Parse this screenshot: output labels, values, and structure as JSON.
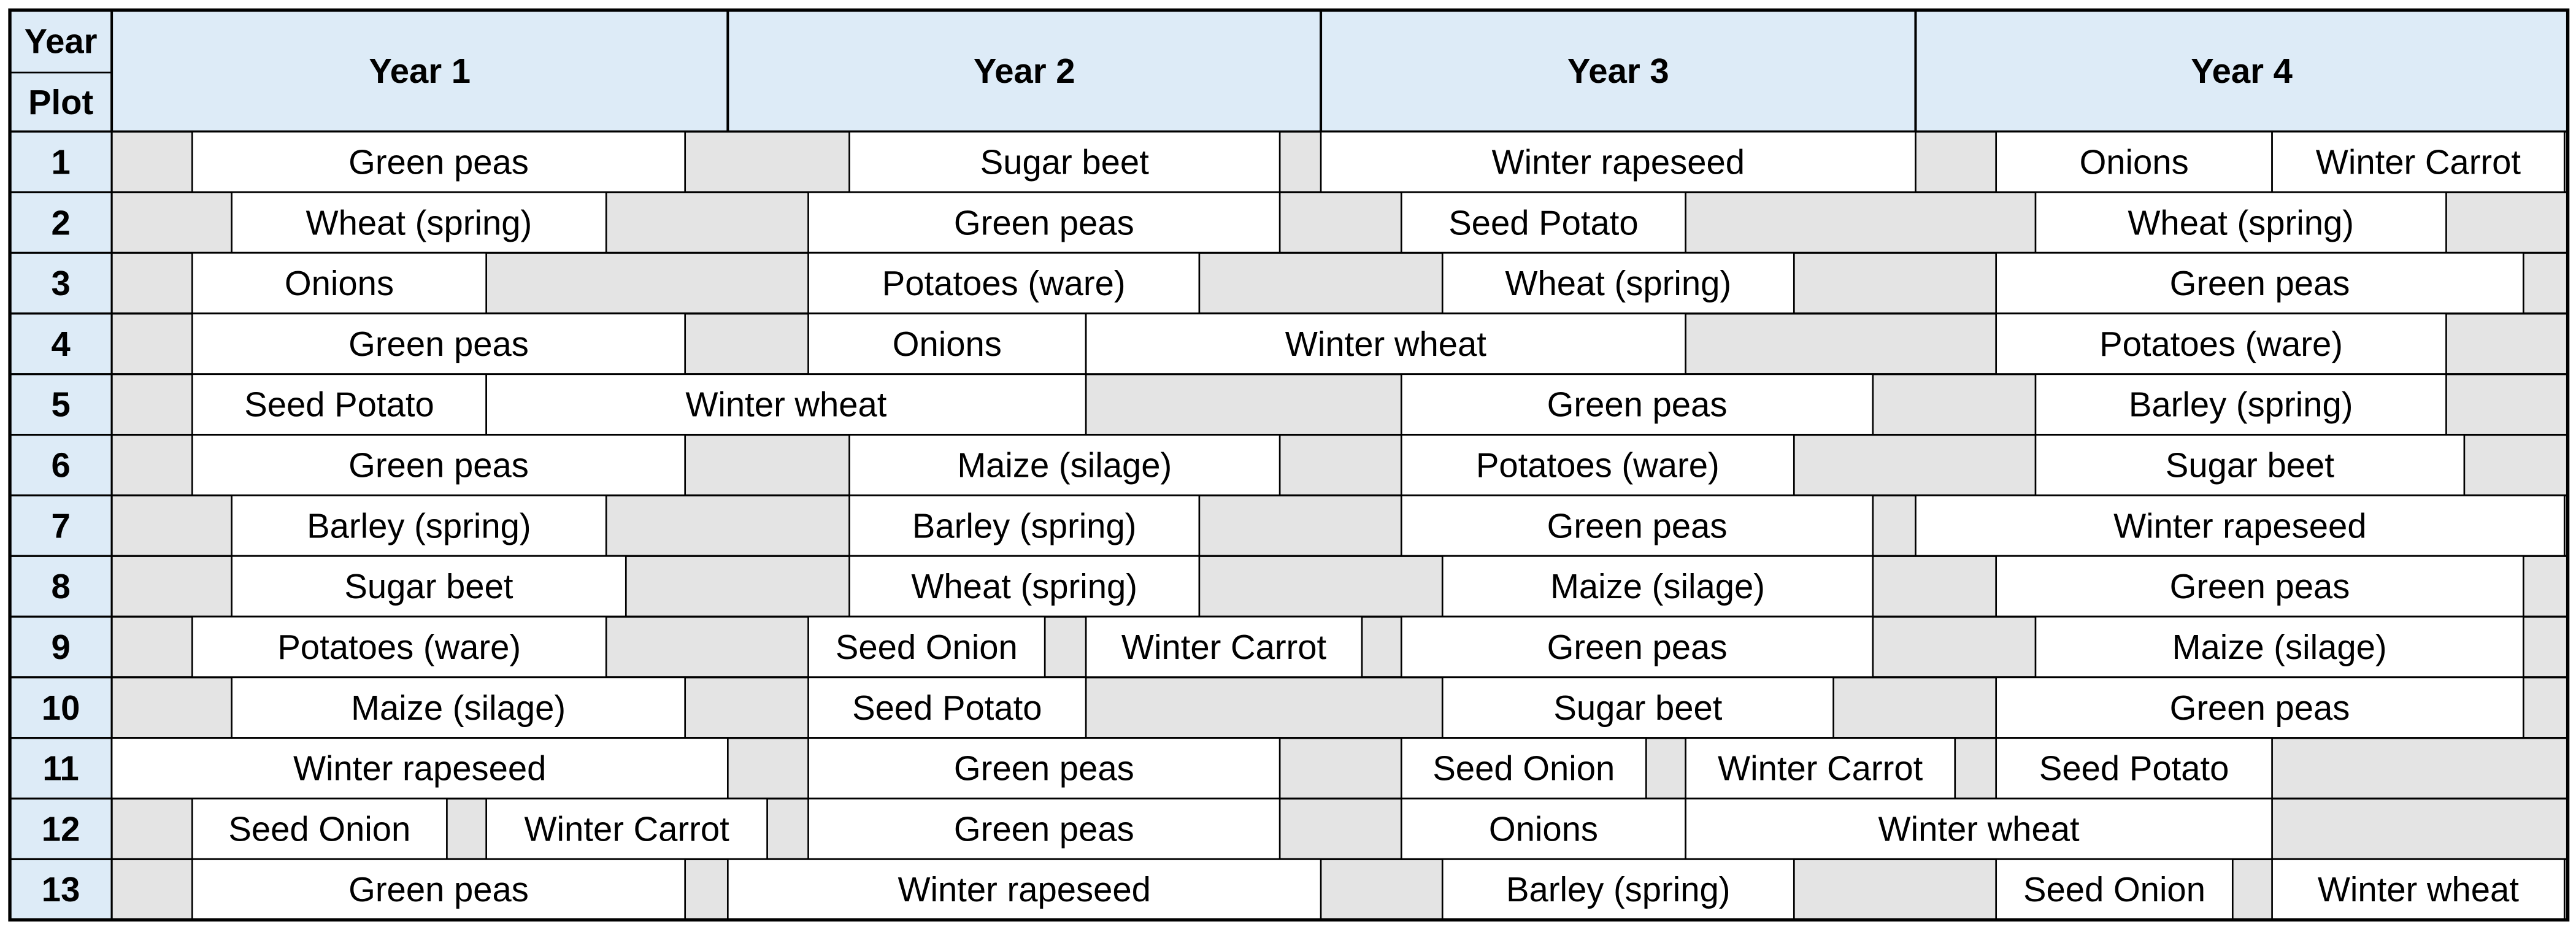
{
  "header": {
    "corner_top": "Year",
    "corner_bottom": "Plot",
    "years": [
      "Year 1",
      "Year 2",
      "Year 3",
      "Year 4"
    ]
  },
  "rows": [
    {
      "plot": "1",
      "crops": [
        "Green peas",
        "Sugar beet",
        "Winter rapeseed",
        "Onions",
        "Winter Carrot"
      ]
    },
    {
      "plot": "2",
      "crops": [
        "Wheat (spring)",
        "Green peas",
        "Seed Potato",
        "Wheat (spring)"
      ]
    },
    {
      "plot": "3",
      "crops": [
        "Onions",
        "Potatoes (ware)",
        "Wheat (spring)",
        "Green peas"
      ]
    },
    {
      "plot": "4",
      "crops": [
        "Green peas",
        "Onions",
        "Winter wheat",
        "Potatoes (ware)"
      ]
    },
    {
      "plot": "5",
      "crops": [
        "Seed Potato",
        "Winter wheat",
        "Green peas",
        "Barley (spring)"
      ]
    },
    {
      "plot": "6",
      "crops": [
        "Green peas",
        "Maize (silage)",
        "Potatoes (ware)",
        "Sugar beet"
      ]
    },
    {
      "plot": "7",
      "crops": [
        "Barley (spring)",
        "Barley (spring)",
        "Green peas",
        "Winter rapeseed"
      ]
    },
    {
      "plot": "8",
      "crops": [
        "Sugar beet",
        "Wheat (spring)",
        "Maize (silage)",
        "Green peas"
      ]
    },
    {
      "plot": "9",
      "crops": [
        "Potatoes (ware)",
        "Seed Onion",
        "Winter Carrot",
        "Green peas",
        "Maize (silage)"
      ]
    },
    {
      "plot": "10",
      "crops": [
        "Maize (silage)",
        "Seed Potato",
        "Sugar beet",
        "Green peas"
      ]
    },
    {
      "plot": "11",
      "crops": [
        "Winter rapeseed",
        "Green peas",
        "Seed Onion",
        "Winter Carrot",
        "Seed Potato"
      ]
    },
    {
      "plot": "12",
      "crops": [
        "Seed Onion",
        "Winter Carrot",
        "Green peas",
        "Onions",
        "Winter wheat"
      ]
    },
    {
      "plot": "13",
      "crops": [
        "Green peas",
        "Winter rapeseed",
        "Barley (spring)",
        "Seed Onion",
        "Winter wheat"
      ]
    }
  ]
}
